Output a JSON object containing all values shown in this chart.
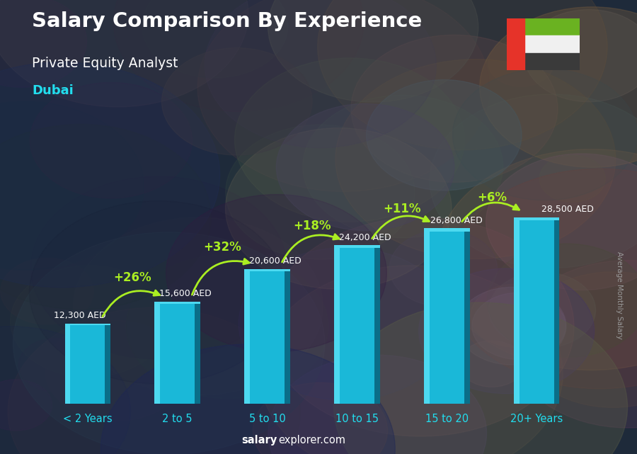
{
  "title": "Salary Comparison By Experience",
  "subtitle": "Private Equity Analyst",
  "city": "Dubai",
  "ylabel": "Average Monthly Salary",
  "footer_bold": "salary",
  "footer_normal": "explorer.com",
  "categories": [
    "< 2 Years",
    "2 to 5",
    "5 to 10",
    "10 to 15",
    "15 to 20",
    "20+ Years"
  ],
  "values": [
    12300,
    15600,
    20600,
    24200,
    26800,
    28500
  ],
  "labels": [
    "12,300 AED",
    "15,600 AED",
    "20,600 AED",
    "24,200 AED",
    "26,800 AED",
    "28,500 AED"
  ],
  "pct_changes": [
    "+26%",
    "+32%",
    "+18%",
    "+11%",
    "+6%"
  ],
  "bar_color_light": "#4dd9f0",
  "bar_color_main": "#1ab8d8",
  "bar_color_dark": "#0d8aa8",
  "bar_color_right": "#0a6e88",
  "bg_color": "#1e2440",
  "title_color": "#ffffff",
  "subtitle_color": "#ffffff",
  "city_color": "#22ddee",
  "label_color": "#ffffff",
  "pct_color": "#aaee22",
  "arrow_color": "#aaee22",
  "footer_color": "#ffffff",
  "ylabel_color": "#999999",
  "xtick_color": "#22ddee",
  "ylim_max": 36000,
  "bar_width": 0.62,
  "flag_red": "#e63329",
  "flag_green": "#6ab221",
  "flag_white": "#f0f0f0",
  "flag_black": "#3a3a3a"
}
